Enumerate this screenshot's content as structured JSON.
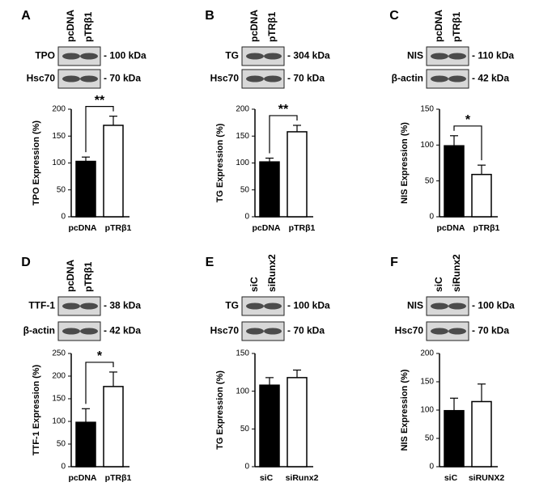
{
  "chart_data": [
    {
      "type": "bar",
      "panel": "A",
      "lanes": [
        "pcDNA",
        "pTRβ1"
      ],
      "blots": [
        {
          "protein": "TPO",
          "size": "- 100 kDa"
        },
        {
          "protein": "Hsc70",
          "size": "- 70 kDa"
        }
      ],
      "significance": "**",
      "ylabel": "TPO Expression (%)",
      "categories": [
        "pcDNA",
        "pTRβ1"
      ],
      "values": [
        103,
        170
      ],
      "errors": [
        8,
        17
      ],
      "colors": [
        "#000000",
        "#ffffff"
      ],
      "ylim": [
        0,
        200
      ],
      "yticks": [
        0,
        50,
        100,
        150,
        200
      ]
    },
    {
      "type": "bar",
      "panel": "B",
      "lanes": [
        "pcDNA",
        "pTRβ1"
      ],
      "blots": [
        {
          "protein": "TG",
          "size": "- 304 kDa"
        },
        {
          "protein": "Hsc70",
          "size": "- 70 kDa"
        }
      ],
      "significance": "**",
      "ylabel": "TG Expression (%)",
      "categories": [
        "pcDNA",
        "pTRβ1"
      ],
      "values": [
        102,
        158
      ],
      "errors": [
        7,
        12
      ],
      "colors": [
        "#000000",
        "#ffffff"
      ],
      "ylim": [
        0,
        200
      ],
      "yticks": [
        0,
        50,
        100,
        150,
        200
      ]
    },
    {
      "type": "bar",
      "panel": "C",
      "lanes": [
        "pcDNA",
        "pTRβ1"
      ],
      "blots": [
        {
          "protein": "NIS",
          "size": "- 110 kDa"
        },
        {
          "protein": "β-actin",
          "size": "- 42 kDa"
        }
      ],
      "significance": "*",
      "ylabel": "NIS Expression (%)",
      "categories": [
        "pcDNA",
        "pTRβ1"
      ],
      "values": [
        99,
        59
      ],
      "errors": [
        14,
        13
      ],
      "colors": [
        "#000000",
        "#ffffff"
      ],
      "ylim": [
        0,
        150
      ],
      "yticks": [
        0,
        50,
        100,
        150
      ]
    },
    {
      "type": "bar",
      "panel": "D",
      "lanes": [
        "pcDNA",
        "pTRβ1"
      ],
      "blots": [
        {
          "protein": "TTF-1",
          "size": "- 38 kDa"
        },
        {
          "protein": "β-actin",
          "size": "- 42 kDa"
        }
      ],
      "significance": "*",
      "ylabel": "TTF-1 Expression (%)",
      "categories": [
        "pcDNA",
        "pTRβ1"
      ],
      "values": [
        98,
        177
      ],
      "errors": [
        30,
        32
      ],
      "colors": [
        "#000000",
        "#ffffff"
      ],
      "ylim": [
        0,
        250
      ],
      "yticks": [
        0,
        50,
        100,
        150,
        200,
        250
      ]
    },
    {
      "type": "bar",
      "panel": "E",
      "lanes": [
        "siC",
        "siRunx2"
      ],
      "blots": [
        {
          "protein": "TG",
          "size": "- 100 kDa"
        },
        {
          "protein": "Hsc70",
          "size": "- 70 kDa"
        }
      ],
      "ylabel": "TG Expression (%)",
      "categories": [
        "siC",
        "siRunx2"
      ],
      "values": [
        108,
        118
      ],
      "errors": [
        10,
        10
      ],
      "colors": [
        "#000000",
        "#ffffff"
      ],
      "ylim": [
        0,
        150
      ],
      "yticks": [
        0,
        50,
        100,
        150
      ]
    },
    {
      "type": "bar",
      "panel": "F",
      "lanes": [
        "siC",
        "siRunx2"
      ],
      "blots": [
        {
          "protein": "NIS",
          "size": "- 100 kDa"
        },
        {
          "protein": "Hsc70",
          "size": "- 70 kDa"
        }
      ],
      "ylabel": "NIS Expression (%)",
      "categories": [
        "siC",
        "siRUNX2"
      ],
      "values": [
        99,
        115
      ],
      "errors": [
        22,
        31
      ],
      "colors": [
        "#000000",
        "#ffffff"
      ],
      "ylim": [
        0,
        200
      ],
      "yticks": [
        0,
        50,
        100,
        150,
        200
      ]
    }
  ]
}
